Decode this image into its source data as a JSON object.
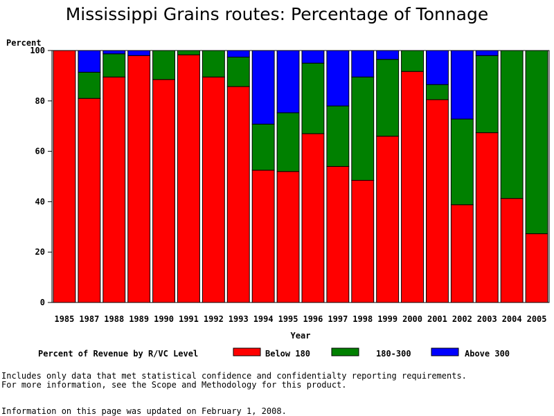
{
  "chart_data": {
    "type": "bar",
    "stacked": true,
    "title": "Mississippi Grains routes: Percentage of Tonnage",
    "xlabel": "Year",
    "ylabel": "Percent",
    "ylim": [
      0,
      100
    ],
    "yticks": [
      "0",
      "20",
      "40",
      "60",
      "80",
      "100"
    ],
    "categories": [
      "1985",
      "1987",
      "1988",
      "1989",
      "1990",
      "1991",
      "1992",
      "1993",
      "1994",
      "1995",
      "1996",
      "1997",
      "1998",
      "1999",
      "2000",
      "2001",
      "2002",
      "2003",
      "2004",
      "2005"
    ],
    "legend_title": "Percent of Revenue by R/VC Level",
    "legend_placement": "bottom",
    "grid": false,
    "series": [
      {
        "name": "Below 180",
        "color": "#ff0000",
        "values": [
          100,
          81,
          89.5,
          98,
          88.5,
          98.3,
          89.5,
          85.7,
          52.5,
          52,
          67,
          54,
          48.5,
          66,
          91.7,
          80.5,
          38.8,
          67.4,
          41.3,
          27.3
        ]
      },
      {
        "name": "180-300",
        "color": "#008000",
        "values": [
          0,
          10.4,
          9.2,
          0,
          11.5,
          1.7,
          10.5,
          11.7,
          18.3,
          23.3,
          28,
          24,
          41,
          30.5,
          8.3,
          6,
          34,
          30.6,
          58.7,
          72.7
        ]
      },
      {
        "name": "Above 300",
        "color": "#0000ff",
        "values": [
          0,
          8.6,
          1.3,
          2,
          0,
          0,
          0,
          2.6,
          29.2,
          24.7,
          5,
          22,
          10.5,
          3.5,
          0,
          13.5,
          27.2,
          2,
          0,
          0
        ]
      }
    ]
  },
  "notes": {
    "line1": "Includes only data that met statistical confidence and confidentialty reporting requirements.",
    "line2": "For more information, see the Scope and Methodology for this product.",
    "updated": "Information on this page was updated on February 1, 2008."
  }
}
